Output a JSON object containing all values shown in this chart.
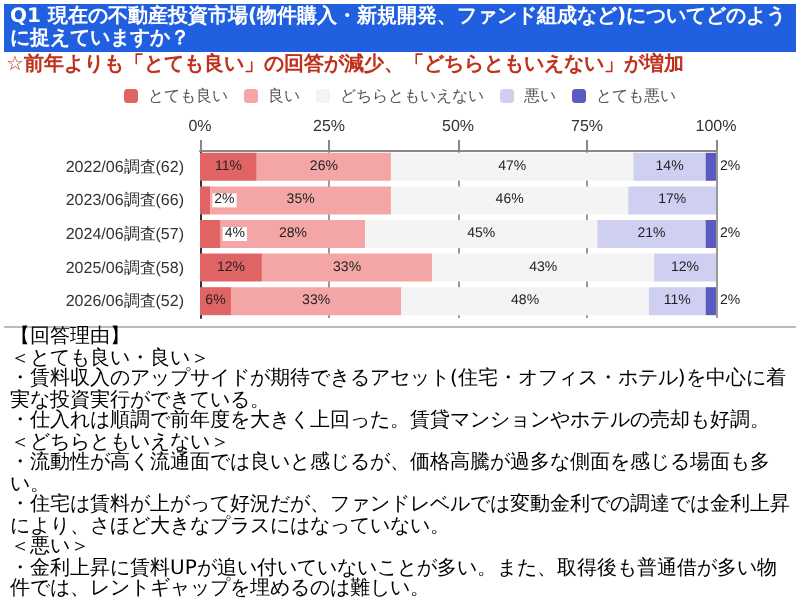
{
  "chart_data": {
    "type": "bar",
    "orientation": "horizontal",
    "stacked": true,
    "title": "Q1 現在の不動産投資市場(物件購入・新規開発、ファンド組成など)についてどのように捉えていますか？",
    "subtitle": "☆前年よりも「とても良い」の回答が減少、「どちらともいえない」が増加",
    "categories": [
      "2022/06調査(62)",
      "2023/06調査(66)",
      "2024/06調査(57)",
      "2025/06調査(58)",
      "2026/06調査(52)"
    ],
    "series": [
      {
        "name": "とても良い",
        "color": "#e06464",
        "values": [
          11,
          2,
          4,
          12,
          6
        ],
        "value_labels": [
          "11%",
          "2%",
          "4%",
          "12%",
          "6%"
        ]
      },
      {
        "name": "良い",
        "color": "#f4a6a6",
        "values": [
          26,
          35,
          28,
          33,
          33
        ],
        "value_labels": [
          "26%",
          "35%",
          "28%",
          "33%",
          "33%"
        ]
      },
      {
        "name": "どちらともいえない",
        "color": "#f4f4f4",
        "values": [
          47,
          46,
          45,
          43,
          48
        ],
        "value_labels": [
          "47%",
          "46%",
          "45%",
          "43%",
          "48%"
        ]
      },
      {
        "name": "悪い",
        "color": "#cfcff2",
        "values": [
          14,
          17,
          21,
          12,
          11
        ],
        "value_labels": [
          "14%",
          "17%",
          "21%",
          "12%",
          "11%"
        ]
      },
      {
        "name": "とても悪い",
        "color": "#5a5ac0",
        "values": [
          2,
          0,
          2,
          0,
          2
        ],
        "value_labels": [
          "2%",
          null,
          "2%",
          null,
          "2%"
        ]
      }
    ],
    "xlim": [
      0,
      100
    ],
    "xticks": [
      {
        "value": 0,
        "label": "0%"
      },
      {
        "value": 25,
        "label": "25%"
      },
      {
        "value": 50,
        "label": "50%"
      },
      {
        "value": 75,
        "label": "75%"
      },
      {
        "value": 100,
        "label": "100%"
      }
    ],
    "grid": "x",
    "legend": "top",
    "annotations": [
      "【回答理由】",
      "＜とても良い・良い＞",
      "・賃料収入のアップサイドが期待できるアセット(住宅・オフィス・ホテル)を中心に着実な投資実行ができている。",
      "・仕入れは順調で前年度を大きく上回った。賃貸マンションやホテルの売却も好調。",
      "＜どちらともいえない＞",
      "・流動性が高く流通面では良いと感じるが、価格高騰が過多な側面を感じる場面も多い。",
      "・住宅は賃料が上がって好況だが、ファンドレベルでは変動金利での調達では金利上昇により、さほど大きなプラスにはなっていない。",
      "＜悪い＞",
      "・金利上昇に賃料UPが追い付いていないことが多い。また、取得後も普通借が多い物件では、レントギャップを埋めるのは難しい。"
    ]
  }
}
